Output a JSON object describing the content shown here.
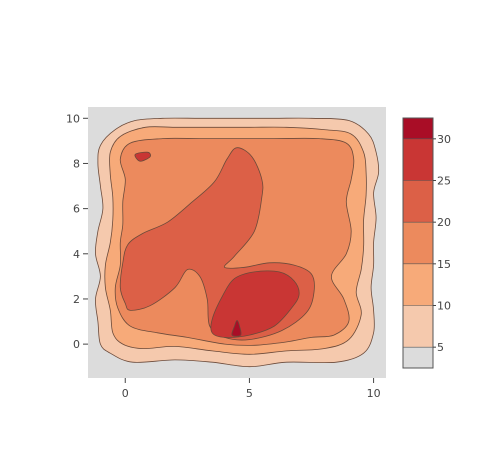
{
  "chart_data": {
    "type": "contour",
    "title": "",
    "xlabel": "",
    "ylabel": "",
    "xlim": [
      -1.5,
      10.5
    ],
    "ylim": [
      -1.5,
      10.5
    ],
    "x_ticks": [
      "0",
      "5",
      "10"
    ],
    "y_ticks": [
      "0",
      "2",
      "4",
      "6",
      "8",
      "10"
    ],
    "grid": false,
    "legend_placement": "right colorbar",
    "levels": [
      5,
      10,
      15,
      20,
      25,
      30
    ],
    "colorbar_ticks": [
      "5",
      "10",
      "15",
      "20",
      "25",
      "30"
    ],
    "colorbar_range": [
      2.5,
      32.5
    ],
    "colors": {
      "background": "#dcdcdc",
      "below_5": "#dcdcdc",
      "band_5_10": "#f5c9ad",
      "band_10_15": "#f7aa79",
      "band_15_20": "#ec8a5d",
      "band_20_25": "#dc6047",
      "band_25_30": "#c93634",
      "band_30_plus": "#a90d26",
      "contour_line": "#6b4a3a"
    },
    "contours": [
      {
        "level": 5,
        "points": [
          [
            0.3,
            -0.8
          ],
          [
            2,
            -0.7
          ],
          [
            3.5,
            -0.8
          ],
          [
            5,
            -1
          ],
          [
            6.5,
            -0.8
          ],
          [
            8.5,
            -0.8
          ],
          [
            9.6,
            -0.4
          ],
          [
            10,
            0.5
          ],
          [
            10,
            1.5
          ],
          [
            9.9,
            2.5
          ],
          [
            10,
            3.5
          ],
          [
            10,
            4.5
          ],
          [
            10.1,
            5.6
          ],
          [
            10,
            6.7
          ],
          [
            10.2,
            7.6
          ],
          [
            10.1,
            8.5
          ],
          [
            9.8,
            9.3
          ],
          [
            9,
            9.9
          ],
          [
            7.5,
            10
          ],
          [
            6,
            10
          ],
          [
            4.5,
            10
          ],
          [
            3,
            10
          ],
          [
            1.5,
            10
          ],
          [
            0.4,
            9.9
          ],
          [
            -0.4,
            9.5
          ],
          [
            -1,
            8.8
          ],
          [
            -1.1,
            8
          ],
          [
            -1,
            7
          ],
          [
            -0.9,
            6
          ],
          [
            -1.1,
            5
          ],
          [
            -1.2,
            4
          ],
          [
            -1,
            3
          ],
          [
            -1.2,
            2
          ],
          [
            -1.1,
            1
          ],
          [
            -1,
            0
          ],
          [
            -0.6,
            -0.4
          ]
        ]
      },
      {
        "level": 10,
        "points": [
          [
            0.7,
            -0.2
          ],
          [
            2,
            -0.1
          ],
          [
            3.5,
            -0.3
          ],
          [
            5,
            -0.45
          ],
          [
            6.5,
            -0.3
          ],
          [
            8,
            -0.2
          ],
          [
            9,
            0.2
          ],
          [
            9.5,
            1.3
          ],
          [
            9.3,
            2.3
          ],
          [
            9.5,
            3.3
          ],
          [
            9.6,
            4.3
          ],
          [
            9.6,
            5.5
          ],
          [
            9.7,
            6.6
          ],
          [
            9.7,
            7.6
          ],
          [
            9.6,
            8.5
          ],
          [
            9.1,
            9.3
          ],
          [
            8,
            9.5
          ],
          [
            6.5,
            9.6
          ],
          [
            5,
            9.6
          ],
          [
            3.5,
            9.6
          ],
          [
            2,
            9.6
          ],
          [
            0.8,
            9.6
          ],
          [
            -0.2,
            9.2
          ],
          [
            -0.6,
            8.5
          ],
          [
            -0.6,
            7.5
          ],
          [
            -0.5,
            6.5
          ],
          [
            -0.5,
            5.5
          ],
          [
            -0.6,
            4.5
          ],
          [
            -0.8,
            3.5
          ],
          [
            -0.8,
            2.5
          ],
          [
            -0.6,
            1.5
          ],
          [
            -0.5,
            0.5
          ],
          [
            -0.1,
            0
          ]
        ]
      },
      {
        "level": 15,
        "points": [
          [
            1.3,
            0.5
          ],
          [
            2.5,
            0.3
          ],
          [
            4,
            0
          ],
          [
            5.2,
            -0.05
          ],
          [
            6.5,
            0.1
          ],
          [
            7.5,
            0.3
          ],
          [
            8.4,
            0.4
          ],
          [
            9,
            1
          ],
          [
            8.8,
            2
          ],
          [
            8.3,
            3
          ],
          [
            8.9,
            4
          ],
          [
            9.1,
            5
          ],
          [
            8.9,
            6.3
          ],
          [
            9.1,
            7.3
          ],
          [
            9.2,
            8.2
          ],
          [
            8.9,
            8.9
          ],
          [
            7.8,
            9.1
          ],
          [
            6,
            9.1
          ],
          [
            4.5,
            9.1
          ],
          [
            3,
            9.1
          ],
          [
            1.5,
            9.1
          ],
          [
            0.2,
            8.9
          ],
          [
            -0.2,
            8.2
          ],
          [
            0,
            7.3
          ],
          [
            -0.1,
            6.3
          ],
          [
            -0.1,
            5.3
          ],
          [
            -0.2,
            4.5
          ],
          [
            -0.2,
            3.5
          ],
          [
            -0.4,
            2.5
          ],
          [
            -0.3,
            1.6
          ],
          [
            0.2,
            0.8
          ]
        ]
      },
      {
        "level": 20,
        "points": [
          [
            0.2,
            1.5
          ],
          [
            1,
            1.7
          ],
          [
            2,
            2.5
          ],
          [
            2.5,
            3.3
          ],
          [
            3,
            3
          ],
          [
            3.3,
            2
          ],
          [
            3.4,
            0.8
          ],
          [
            4,
            0.3
          ],
          [
            5,
            0.2
          ],
          [
            6.3,
            0.6
          ],
          [
            7.3,
            1.4
          ],
          [
            7.6,
            2.3
          ],
          [
            7.5,
            3.1
          ],
          [
            6.8,
            3.5
          ],
          [
            5.8,
            3.6
          ],
          [
            4.8,
            3.4
          ],
          [
            4,
            3.4
          ],
          [
            4.4,
            3.9
          ],
          [
            5.2,
            5
          ],
          [
            5.5,
            6.5
          ],
          [
            5.5,
            7.3
          ],
          [
            5.1,
            8.3
          ],
          [
            4.5,
            8.7
          ],
          [
            4.1,
            8.2
          ],
          [
            3.6,
            7.2
          ],
          [
            2.7,
            6.3
          ],
          [
            1.7,
            5.4
          ],
          [
            0.7,
            4.9
          ],
          [
            0.1,
            4.4
          ],
          [
            -0.1,
            3.6
          ],
          [
            -0.2,
            2.5
          ],
          [
            0,
            1.8
          ]
        ]
      },
      {
        "level": 25,
        "points": [
          [
            3.5,
            0.5
          ],
          [
            4,
            0.3
          ],
          [
            5,
            0.4
          ],
          [
            6,
            0.8
          ],
          [
            6.7,
            1.6
          ],
          [
            7,
            2.2
          ],
          [
            6.8,
            2.8
          ],
          [
            6.2,
            3.2
          ],
          [
            5.2,
            3.2
          ],
          [
            4.4,
            2.9
          ],
          [
            3.9,
            2.1
          ],
          [
            3.5,
            1.1
          ]
        ]
      },
      {
        "level": 25,
        "points": [
          [
            0.4,
            8.4
          ],
          [
            0.9,
            8.5
          ],
          [
            1,
            8.3
          ],
          [
            0.6,
            8.1
          ]
        ]
      },
      {
        "level": 30,
        "points": [
          [
            4.3,
            0.4
          ],
          [
            4.65,
            0.4
          ],
          [
            4.6,
            0.8
          ],
          [
            4.5,
            1.05
          ],
          [
            4.4,
            0.8
          ]
        ]
      }
    ]
  }
}
